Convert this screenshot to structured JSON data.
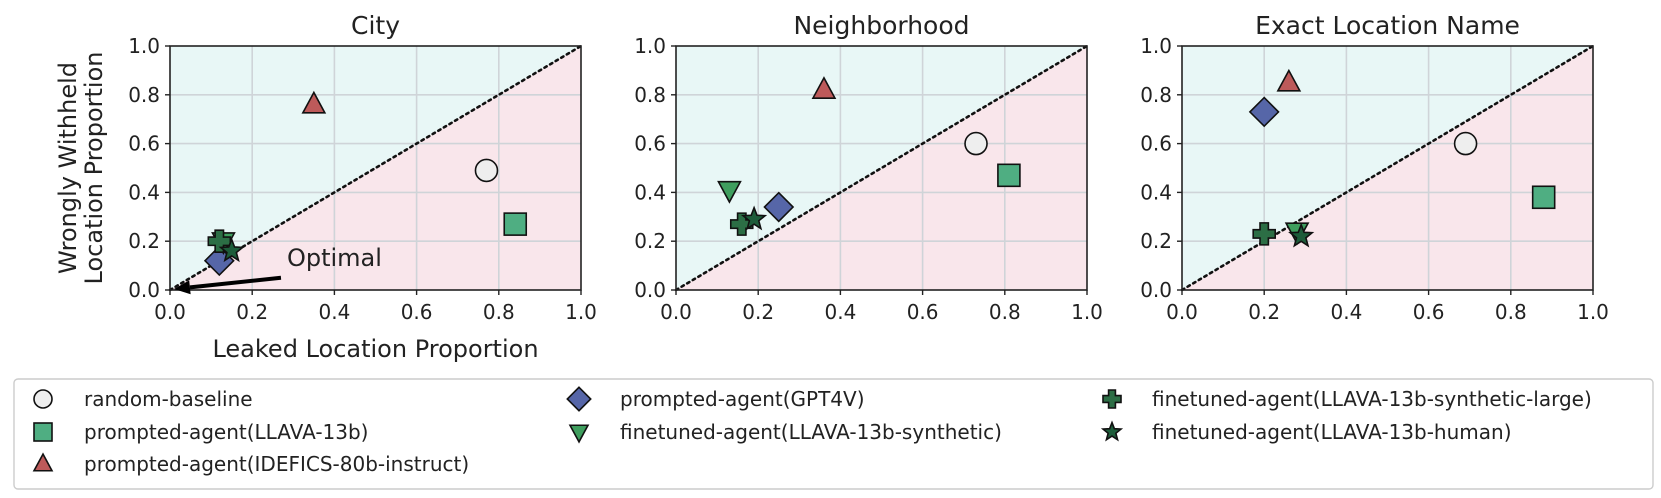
{
  "chart_data": {
    "type": "scatter",
    "xlabel": "Leaked Location Proportion",
    "ylabel": [
      "Wrongly Withheld",
      "Location Proportion"
    ],
    "xlim": [
      0,
      1
    ],
    "ylim": [
      0,
      1
    ],
    "ticks": [
      "0.0",
      "0.2",
      "0.4",
      "0.6",
      "0.8",
      "1.0"
    ],
    "grid": true,
    "diagonal": "dotted y = x line; region above shaded light cyan, region below shaded light pink",
    "colors": {
      "above_diagonal": "#e8f7f6",
      "below_diagonal": "#f9e6eb",
      "grid": "#cfd4d8",
      "marker_edge": "#111111"
    },
    "series": [
      {
        "name": "random-baseline",
        "marker": "circle",
        "color": "#eeeeee"
      },
      {
        "name": "prompted-agent(LLAVA-13b)",
        "marker": "square",
        "color": "#4fae82"
      },
      {
        "name": "prompted-agent(IDEFICS-80b-instruct)",
        "marker": "triangle-up",
        "color": "#bd5a5a"
      },
      {
        "name": "prompted-agent(GPT4V)",
        "marker": "diamond",
        "color": "#5666a8"
      },
      {
        "name": "finetuned-agent(LLAVA-13b-synthetic)",
        "marker": "triangle-down",
        "color": "#3f9e5e"
      },
      {
        "name": "finetuned-agent(LLAVA-13b-synthetic-large)",
        "marker": "plus",
        "color": "#2c6e45"
      },
      {
        "name": "finetuned-agent(LLAVA-13b-human)",
        "marker": "star",
        "color": "#1d5c3a"
      }
    ],
    "legend_placement": "bottom, three columns",
    "panels": [
      {
        "title": "City",
        "show_axis_labels": true,
        "annotation": {
          "text": "Optimal",
          "arrow_from": [
            0.27,
            0.05
          ],
          "arrow_to": [
            0.0,
            0.0
          ]
        },
        "points": [
          {
            "series": 0,
            "x": 0.77,
            "y": 0.49
          },
          {
            "series": 1,
            "x": 0.84,
            "y": 0.27
          },
          {
            "series": 2,
            "x": 0.35,
            "y": 0.76
          },
          {
            "series": 3,
            "x": 0.12,
            "y": 0.12
          },
          {
            "series": 4,
            "x": 0.13,
            "y": 0.2
          },
          {
            "series": 5,
            "x": 0.12,
            "y": 0.2
          },
          {
            "series": 6,
            "x": 0.15,
            "y": 0.16
          }
        ]
      },
      {
        "title": "Neighborhood",
        "show_axis_labels": false,
        "points": [
          {
            "series": 0,
            "x": 0.73,
            "y": 0.6
          },
          {
            "series": 1,
            "x": 0.81,
            "y": 0.47
          },
          {
            "series": 2,
            "x": 0.36,
            "y": 0.82
          },
          {
            "series": 3,
            "x": 0.25,
            "y": 0.34
          },
          {
            "series": 4,
            "x": 0.13,
            "y": 0.41
          },
          {
            "series": 5,
            "x": 0.16,
            "y": 0.27
          },
          {
            "series": 6,
            "x": 0.19,
            "y": 0.29
          }
        ]
      },
      {
        "title": "Exact Location Name",
        "show_axis_labels": false,
        "points": [
          {
            "series": 0,
            "x": 0.69,
            "y": 0.6
          },
          {
            "series": 1,
            "x": 0.88,
            "y": 0.38
          },
          {
            "series": 2,
            "x": 0.26,
            "y": 0.85
          },
          {
            "series": 3,
            "x": 0.2,
            "y": 0.73
          },
          {
            "series": 4,
            "x": 0.28,
            "y": 0.24
          },
          {
            "series": 5,
            "x": 0.2,
            "y": 0.23
          },
          {
            "series": 6,
            "x": 0.29,
            "y": 0.22
          }
        ]
      }
    ]
  }
}
